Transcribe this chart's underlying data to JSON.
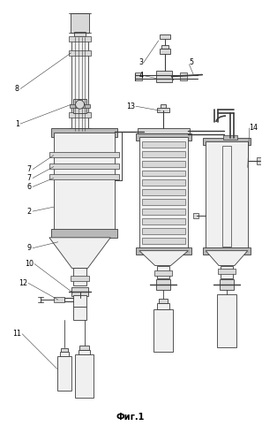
{
  "title": "Фиг.1",
  "bg_color": "#ffffff",
  "line_color": "#3a3a3a",
  "fill_light": "#f0f0f0",
  "fill_med": "#d8d8d8",
  "fill_dark": "#b8b8b8",
  "fig_width": 2.97,
  "fig_height": 4.99,
  "dpi": 100
}
